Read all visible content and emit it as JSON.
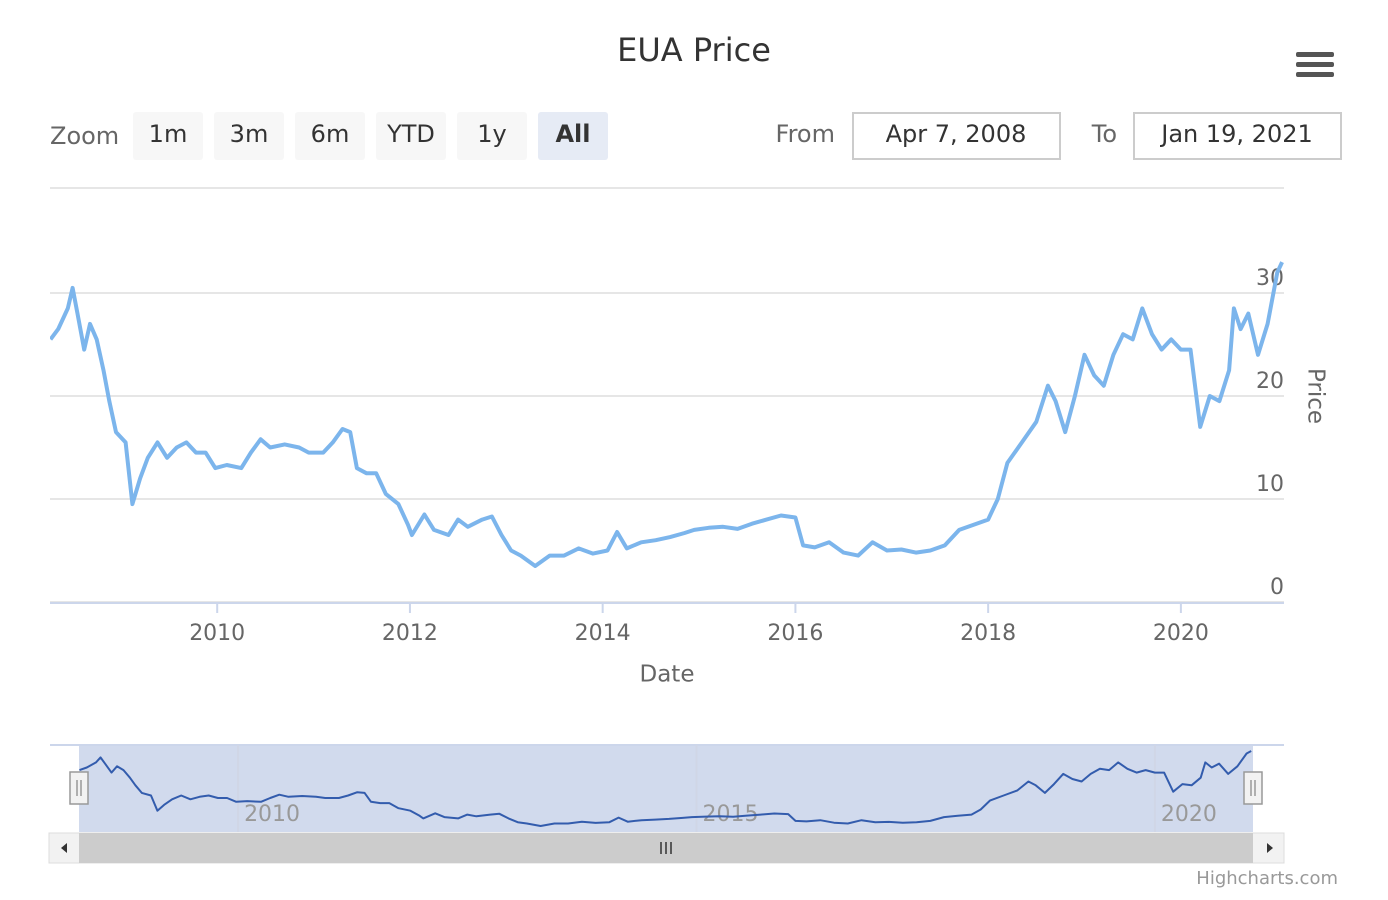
{
  "chart_data": {
    "type": "line",
    "title": "EUA Price",
    "x_label": "Date",
    "y_label": "Price",
    "xlim": [
      2008.265,
      2021.07
    ],
    "xticks": [
      2010,
      2012,
      2014,
      2016,
      2018,
      2020
    ],
    "ylim": [
      0,
      40
    ],
    "yticks": [
      0,
      10,
      20,
      30
    ],
    "grid": true,
    "series": [
      {
        "color": "#7cb5ec",
        "values": [
          25.5,
          26.5,
          28.5,
          30.5,
          28,
          24.5,
          27,
          25.5,
          22.5,
          19.5,
          16.5,
          15.5,
          9.5,
          12,
          14,
          15.5,
          14,
          15,
          15.5,
          14.5,
          14.5,
          13,
          13.3,
          13,
          14.5,
          15.8,
          15,
          15.3,
          15,
          14.5,
          14.5,
          15.5,
          16.8,
          16.5,
          13,
          12.5,
          12.5,
          10.5,
          9.5,
          7.5,
          6.5,
          8.5,
          7,
          6.5,
          8,
          7.3,
          8,
          8.3,
          6.5,
          5,
          4.5,
          3.5,
          4.5,
          4.5,
          5.2,
          4.7,
          5,
          6.8,
          5.2,
          5.8,
          6,
          6.3,
          6.7,
          7,
          7.2,
          7.3,
          7.1,
          7.6,
          8,
          8.4,
          8.2,
          5.5,
          5.3,
          5.8,
          4.8,
          4.5,
          5.8,
          5,
          5.1,
          4.8,
          5,
          5.5,
          7,
          7.5,
          8,
          10,
          13.5,
          15.5,
          17.5,
          21,
          19.5,
          16.5,
          20,
          24,
          22,
          21,
          24,
          26,
          25.5,
          28.5,
          26,
          24.5,
          25.5,
          24.5,
          24.5,
          17,
          20,
          19.5,
          22.5,
          28.5,
          26.5,
          28,
          24,
          27,
          32,
          33
        ]
      }
    ],
    "x": [
      2008.27,
      2008.35,
      2008.45,
      2008.5,
      2008.55,
      2008.62,
      2008.68,
      2008.75,
      2008.82,
      2008.88,
      2008.95,
      2009.05,
      2009.12,
      2009.2,
      2009.28,
      2009.38,
      2009.48,
      2009.58,
      2009.68,
      2009.78,
      2009.88,
      2009.98,
      2010.1,
      2010.25,
      2010.35,
      2010.45,
      2010.55,
      2010.7,
      2010.85,
      2010.95,
      2011.1,
      2011.2,
      2011.3,
      2011.38,
      2011.45,
      2011.55,
      2011.65,
      2011.75,
      2011.88,
      2011.98,
      2012.02,
      2012.15,
      2012.25,
      2012.4,
      2012.5,
      2012.6,
      2012.75,
      2012.85,
      2012.95,
      2013.05,
      2013.15,
      2013.3,
      2013.45,
      2013.6,
      2013.75,
      2013.9,
      2014.05,
      2014.15,
      2014.25,
      2014.4,
      2014.55,
      2014.7,
      2014.85,
      2014.95,
      2015.1,
      2015.25,
      2015.4,
      2015.55,
      2015.7,
      2015.85,
      2016.0,
      2016.08,
      2016.2,
      2016.35,
      2016.5,
      2016.65,
      2016.8,
      2016.95,
      2017.1,
      2017.25,
      2017.4,
      2017.55,
      2017.7,
      2017.85,
      2018.0,
      2018.1,
      2018.2,
      2018.35,
      2018.5,
      2018.62,
      2018.7,
      2018.8,
      2018.9,
      2019.0,
      2019.1,
      2019.2,
      2019.3,
      2019.4,
      2019.5,
      2019.6,
      2019.7,
      2019.8,
      2019.9,
      2020.0,
      2020.1,
      2020.2,
      2020.3,
      2020.4,
      2020.5,
      2020.55,
      2020.62,
      2020.7,
      2020.8,
      2020.9,
      2021.0,
      2021.05
    ],
    "navigator": {
      "xticks": [
        2010,
        2015,
        2020
      ]
    },
    "range_selector": {
      "zoom_label": "Zoom",
      "buttons": [
        "1m",
        "3m",
        "6m",
        "YTD",
        "1y",
        "All"
      ],
      "selected": 5,
      "from_label": "From",
      "from_value": "Apr 7, 2008",
      "to_label": "To",
      "to_value": "Jan 19, 2021"
    },
    "credits": "Highcharts.com"
  }
}
